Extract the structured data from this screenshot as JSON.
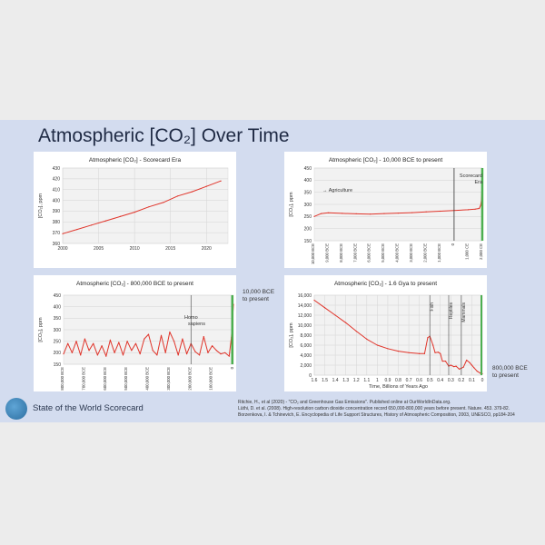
{
  "slide": {
    "title": "Atmospheric [CO₂] Over Time",
    "org": "State of the World Scorecard"
  },
  "references": [
    "Ritchie, H., et al (2020) - \"CO₂ and Greenhouse Gas Emissions\". Published online at OurWorldInData.org.",
    "Lüthi, D. et al. (2008). High-resolution carbon dioxide concentration record 650,000-800,000 years before present. Nature. 453. 379-82.",
    "Borzenkova, I. & Tchinevich, E. Encyclopedia of Life Support Structures, History of Atmospheric Composition, 2003, UNESCO, pp184-204"
  ],
  "chart_data": [
    {
      "type": "line",
      "title": "Atmospheric [CO₂] - Scorecard Era",
      "ylabel": "[CO₂], ppm",
      "xlim": [
        2000,
        2023
      ],
      "ylim": [
        360,
        430
      ],
      "xticks": [
        2000,
        2005,
        2010,
        2015,
        2020
      ],
      "yticks": [
        360,
        370,
        380,
        390,
        400,
        410,
        420,
        430
      ],
      "grid": true,
      "series": [
        {
          "x": [
            2000,
            2002,
            2004,
            2006,
            2008,
            2010,
            2012,
            2014,
            2016,
            2018,
            2020,
            2022
          ],
          "values": [
            369,
            373,
            377,
            381,
            385,
            389,
            394,
            398,
            404,
            408,
            413,
            418
          ],
          "color": "#e0342a"
        }
      ]
    },
    {
      "type": "line",
      "title": "Atmospheric [CO₂] - 10,000 BCE to present",
      "ylabel": "[CO₂], ppm",
      "xlim": [
        -10000,
        2020
      ],
      "ylim": [
        150,
        450
      ],
      "xticks": [
        "10,000 BCE",
        "9,000 BCE",
        "8,000 BCE",
        "7,000 BCE",
        "6,000 BCE",
        "5,000 BCE",
        "4,000 BCE",
        "3,000 BCE",
        "2,000 BCE",
        "1,000 BCE",
        "0",
        "1,000 CE",
        "2,000 CE"
      ],
      "yticks": [
        150,
        200,
        250,
        300,
        350,
        400,
        450
      ],
      "grid": true,
      "annotations": [
        "Agriculture",
        "Scorecard Era"
      ],
      "series": [
        {
          "x": [
            -10000,
            -9500,
            -9000,
            -8000,
            -7000,
            -6000,
            -5000,
            -4000,
            -3000,
            -2000,
            -1000,
            0,
            1000,
            1500,
            1800,
            1900,
            1950,
            2000,
            2020
          ],
          "values": [
            250,
            262,
            265,
            263,
            261,
            260,
            262,
            264,
            266,
            269,
            272,
            275,
            278,
            280,
            283,
            296,
            311,
            370,
            413
          ],
          "color": "#e0342a"
        }
      ]
    },
    {
      "type": "line",
      "title": "Atmospheric [CO₂] - 800,000 BCE to present",
      "ylabel": "[CO₂], ppm",
      "xlim": [
        -800000,
        0
      ],
      "ylim": [
        150,
        450
      ],
      "xticks": [
        "800,000 BCE",
        "700,000 BCE",
        "600,000 BCE",
        "500,000 BCE",
        "400,000 BCE",
        "300,000 BCE",
        "200,000 BCE",
        "100,000 BCE",
        "0"
      ],
      "yticks": [
        150,
        200,
        250,
        300,
        350,
        400,
        450
      ],
      "grid": true,
      "annotations": [
        "Homo sapiens",
        "10,000 BCE to present"
      ],
      "series": [
        {
          "x": [
            -800000,
            -780000,
            -760000,
            -740000,
            -720000,
            -700000,
            -680000,
            -660000,
            -640000,
            -620000,
            -600000,
            -580000,
            -560000,
            -540000,
            -520000,
            -500000,
            -480000,
            -460000,
            -440000,
            -420000,
            -400000,
            -380000,
            -360000,
            -340000,
            -320000,
            -300000,
            -280000,
            -260000,
            -240000,
            -220000,
            -200000,
            -180000,
            -160000,
            -140000,
            -120000,
            -100000,
            -80000,
            -60000,
            -40000,
            -20000,
            -10000,
            0
          ],
          "values": [
            195,
            240,
            200,
            250,
            190,
            260,
            210,
            240,
            190,
            230,
            185,
            255,
            200,
            245,
            190,
            250,
            210,
            240,
            195,
            260,
            280,
            210,
            190,
            275,
            200,
            290,
            250,
            190,
            260,
            195,
            240,
            205,
            190,
            270,
            200,
            230,
            210,
            195,
            200,
            185,
            265,
            410
          ],
          "color": "#e0342a"
        }
      ]
    },
    {
      "type": "line",
      "title": "Atmospheric [CO₂] - 1.6 Gya to present",
      "ylabel": "[CO₂], ppm",
      "xlabel": "Time, Billions of Years Ago",
      "xlim": [
        1.6,
        0
      ],
      "ylim": [
        0,
        16000
      ],
      "xticks": [
        1.6,
        1.5,
        1.4,
        1.3,
        1.2,
        1.1,
        1.0,
        0.9,
        0.8,
        0.7,
        0.6,
        0.5,
        0.4,
        0.3,
        0.2,
        0.1,
        0
      ],
      "yticks": [
        0,
        2000,
        4000,
        6000,
        8000,
        10000,
        12000,
        14000,
        16000
      ],
      "grid": true,
      "annotations": [
        "Fish",
        "Reptiles",
        "Mammals",
        "800,000 BCE to present"
      ],
      "series": [
        {
          "x": [
            1.6,
            1.5,
            1.4,
            1.3,
            1.2,
            1.1,
            1.0,
            0.9,
            0.8,
            0.7,
            0.6,
            0.55,
            0.52,
            0.5,
            0.47,
            0.45,
            0.42,
            0.4,
            0.38,
            0.35,
            0.32,
            0.3,
            0.27,
            0.25,
            0.22,
            0.2,
            0.18,
            0.15,
            0.12,
            0.1,
            0.08,
            0.05,
            0.02,
            0
          ],
          "values": [
            15000,
            13500,
            12000,
            10500,
            8800,
            7200,
            6000,
            5300,
            4800,
            4500,
            4300,
            4300,
            7500,
            7800,
            6000,
            4500,
            4600,
            4300,
            2800,
            2800,
            1800,
            2000,
            1700,
            1800,
            1200,
            1400,
            1600,
            3000,
            2500,
            2000,
            1500,
            800,
            400,
            280
          ],
          "color": "#e0342a"
        }
      ]
    }
  ]
}
